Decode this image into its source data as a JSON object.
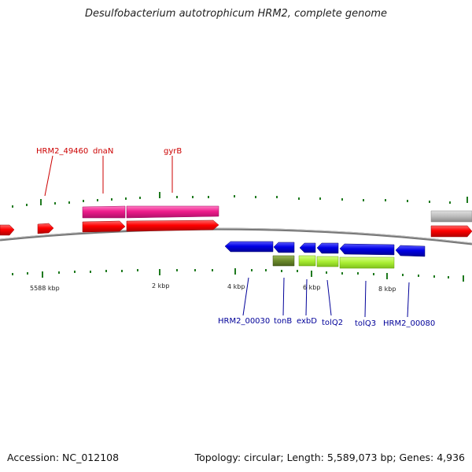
{
  "title": "Desulfobacterium autotrophicum HRM2, complete genome",
  "accession_label": "Accession: NC_012108",
  "topology_label": "Topology: circular; Length: 5,589,073 bp; Genes: 4,936",
  "colors": {
    "forward_gene": "#ff0000",
    "forward_cds": "#ee1c8c",
    "reverse_gene": "#0000e6",
    "reverse_cds_dark": "#6b8a2a",
    "reverse_cds_light": "#aaee33",
    "other_feature": "#bbbbbb",
    "tick": "#1f7a1f",
    "forward_label": "#cc0000",
    "reverse_label": "#000099",
    "backbone": "#777777"
  },
  "scale_labels": [
    "5588 kbp",
    "2 kbp",
    "4 kbp",
    "6 kbp",
    "8 kbp"
  ],
  "forward_labels": [
    "HRM2_49460",
    "dnaN",
    "gyrB"
  ],
  "reverse_labels": [
    "HRM2_00030",
    "tonB",
    "exbD",
    "tolQ2",
    "tolQ3",
    "HRM2_00080"
  ]
}
